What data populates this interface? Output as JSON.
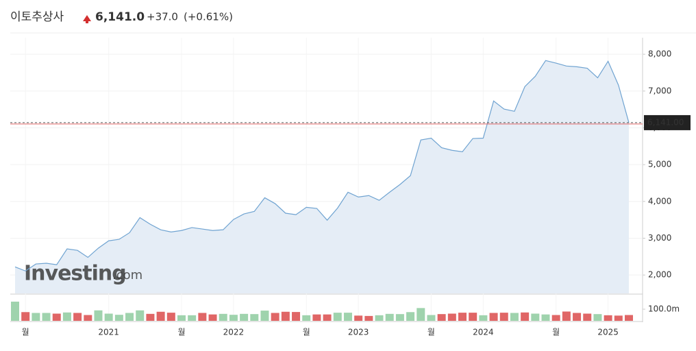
{
  "chart_data": {
    "type": "line",
    "title": "이토추상사",
    "price": "6,141.0",
    "change": "+37.0",
    "change_pct": "(+0.61%)",
    "last_label": "6,141.00",
    "last_value": 6141,
    "prev_close": 6104,
    "watermark": "Investing",
    "watermark_suffix": ".com",
    "color": "#6fa3d1",
    "area_color": "#e5edf6",
    "up_color": "#9fd3ad",
    "down_color": "#e06666",
    "categories": [
      null,
      "월",
      null,
      null,
      null,
      null,
      null,
      null,
      null,
      "2021",
      null,
      null,
      null,
      null,
      null,
      null,
      "월",
      null,
      null,
      null,
      null,
      "2022",
      null,
      null,
      null,
      null,
      null,
      null,
      "월",
      null,
      null,
      null,
      null,
      "2023",
      null,
      null,
      null,
      null,
      null,
      null,
      "월",
      null,
      null,
      null,
      null,
      "2024",
      null,
      null,
      null,
      null,
      null,
      null,
      "월",
      null,
      null,
      null,
      null,
      "2025",
      null,
      null
    ],
    "values": [
      2220,
      2110,
      2300,
      2320,
      2280,
      2710,
      2670,
      2480,
      2730,
      2930,
      2970,
      3150,
      3560,
      3380,
      3230,
      3170,
      3210,
      3290,
      3250,
      3210,
      3230,
      3510,
      3660,
      3730,
      4100,
      3940,
      3680,
      3640,
      3840,
      3810,
      3490,
      3820,
      4250,
      4120,
      4160,
      4030,
      4250,
      4460,
      4700,
      5670,
      5720,
      5460,
      5390,
      5350,
      5710,
      5720,
      6730,
      6510,
      6450,
      7120,
      7400,
      7830,
      7760,
      7680,
      7660,
      7620,
      7360,
      7810,
      7160,
      6141
    ],
    "ylim": [
      1500,
      8450
    ],
    "yticks": [
      {
        "value": 2000,
        "label": "2,000"
      },
      {
        "value": 3000,
        "label": "3,000"
      },
      {
        "value": 4000,
        "label": "4,000"
      },
      {
        "value": 5000,
        "label": "5,000"
      },
      {
        "value": 6000,
        "label": "6,000"
      },
      {
        "value": 7000,
        "label": "7,000"
      },
      {
        "value": 8000,
        "label": "8,000"
      }
    ],
    "grid": true,
    "volume": {
      "values": [
        165,
        75,
        68,
        68,
        62,
        72,
        68,
        50,
        90,
        62,
        52,
        68,
        90,
        60,
        78,
        70,
        48,
        48,
        68,
        55,
        60,
        52,
        60,
        58,
        88,
        68,
        78,
        76,
        48,
        55,
        55,
        70,
        70,
        45,
        42,
        48,
        60,
        58,
        75,
        110,
        50,
        58,
        62,
        70,
        70,
        48,
        68,
        70,
        68,
        72,
        62,
        55,
        50,
        80,
        68,
        62,
        58,
        48,
        45,
        50
      ],
      "directions": [
        "up",
        "down",
        "up",
        "up",
        "down",
        "up",
        "down",
        "down",
        "up",
        "up",
        "up",
        "up",
        "up",
        "down",
        "down",
        "down",
        "up",
        "up",
        "down",
        "down",
        "up",
        "up",
        "up",
        "up",
        "up",
        "down",
        "down",
        "down",
        "up",
        "down",
        "down",
        "up",
        "up",
        "down",
        "down",
        "up",
        "up",
        "up",
        "up",
        "up",
        "up",
        "down",
        "down",
        "down",
        "down",
        "up",
        "down",
        "down",
        "up",
        "down",
        "up",
        "up",
        "down",
        "down",
        "down",
        "down",
        "up",
        "down",
        "down",
        "down"
      ],
      "ylim": [
        0,
        224
      ],
      "yticks": [
        {
          "value": 100,
          "label": "100.0m"
        }
      ]
    }
  }
}
